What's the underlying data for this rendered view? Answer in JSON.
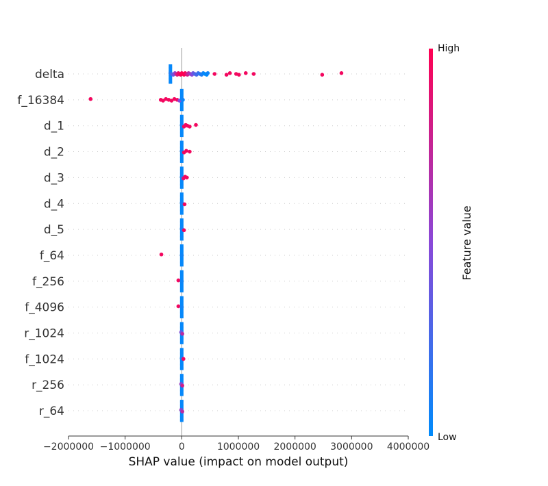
{
  "chart_data": {
    "type": "scatter",
    "title": "",
    "xlabel": "SHAP value (impact on model output)",
    "xlim": [
      -2000000,
      4000000
    ],
    "xticks": [
      -2000000,
      -1000000,
      0,
      1000000,
      2000000,
      3000000,
      4000000
    ],
    "xtick_labels": [
      "−2000000",
      "−1000000",
      "0",
      "1000000",
      "2000000",
      "3000000",
      "4000000"
    ],
    "colorbar": {
      "title": "Feature value",
      "high_label": "High",
      "low_label": "Low",
      "low_color": "#008bfb",
      "high_color": "#ff0052"
    },
    "features": [
      {
        "name": "delta",
        "points": [
          [
            -200000,
            0.1
          ],
          [
            -180000,
            0.25
          ],
          [
            -150000,
            0.4
          ],
          [
            -120000,
            0.55
          ],
          [
            -100000,
            0.7
          ],
          [
            -80000,
            0.85
          ],
          [
            -60000,
            0.9
          ],
          [
            -40000,
            0.95
          ],
          [
            -20000,
            1.0
          ],
          [
            0,
            1.0
          ],
          [
            20000,
            1.0
          ],
          [
            40000,
            1.0
          ],
          [
            60000,
            1.0
          ],
          [
            80000,
            0.9
          ],
          [
            100000,
            0.8
          ],
          [
            120000,
            0.7
          ],
          [
            150000,
            0.6
          ],
          [
            180000,
            0.5
          ],
          [
            200000,
            0.4
          ],
          [
            230000,
            0.3
          ],
          [
            260000,
            0.25
          ],
          [
            290000,
            0.2
          ],
          [
            320000,
            0.15
          ],
          [
            350000,
            0.1
          ],
          [
            380000,
            0.05
          ],
          [
            410000,
            0.0
          ],
          [
            440000,
            0.0
          ],
          [
            460000,
            0.05
          ],
          [
            580000,
            0.95
          ],
          [
            790000,
            0.95
          ],
          [
            850000,
            0.95
          ],
          [
            960000,
            0.95
          ],
          [
            1010000,
            0.95
          ],
          [
            1130000,
            0.95
          ],
          [
            1270000,
            0.95
          ],
          [
            2480000,
            0.95
          ],
          [
            2820000,
            0.95
          ]
        ]
      },
      {
        "name": "f_16384",
        "points": [
          [
            -1610000,
            0.95
          ],
          [
            -370000,
            0.95
          ],
          [
            -330000,
            0.95
          ],
          [
            -280000,
            0.95
          ],
          [
            -230000,
            0.95
          ],
          [
            -180000,
            0.95
          ],
          [
            -130000,
            0.95
          ],
          [
            -80000,
            0.95
          ],
          [
            -40000,
            0.5
          ],
          [
            0,
            0.05
          ],
          [
            20000,
            0.05
          ]
        ]
      },
      {
        "name": "d_1",
        "points": [
          [
            0,
            0.05
          ],
          [
            10000,
            0.1
          ],
          [
            40000,
            0.95
          ],
          [
            70000,
            0.95
          ],
          [
            100000,
            0.95
          ],
          [
            140000,
            0.95
          ],
          [
            250000,
            0.95
          ]
        ]
      },
      {
        "name": "d_2",
        "points": [
          [
            0,
            0.05
          ],
          [
            10000,
            0.1
          ],
          [
            40000,
            0.95
          ],
          [
            80000,
            0.95
          ],
          [
            140000,
            0.95
          ]
        ]
      },
      {
        "name": "d_3",
        "points": [
          [
            0,
            0.05
          ],
          [
            10000,
            0.1
          ],
          [
            30000,
            0.9
          ],
          [
            60000,
            0.95
          ],
          [
            90000,
            0.95
          ]
        ]
      },
      {
        "name": "d_4",
        "points": [
          [
            0,
            0.05
          ],
          [
            10000,
            0.1
          ],
          [
            50000,
            0.95
          ]
        ]
      },
      {
        "name": "d_5",
        "points": [
          [
            0,
            0.05
          ],
          [
            10000,
            0.1
          ],
          [
            40000,
            0.95
          ]
        ]
      },
      {
        "name": "f_64",
        "points": [
          [
            -360000,
            0.95
          ],
          [
            0,
            0.05
          ]
        ]
      },
      {
        "name": "f_256",
        "points": [
          [
            -60000,
            0.95
          ],
          [
            0,
            0.05
          ]
        ]
      },
      {
        "name": "f_4096",
        "points": [
          [
            -60000,
            0.95
          ],
          [
            0,
            0.05
          ]
        ]
      },
      {
        "name": "r_1024",
        "points": [
          [
            -10000,
            0.5
          ],
          [
            0,
            0.3
          ],
          [
            10000,
            0.7
          ]
        ]
      },
      {
        "name": "f_1024",
        "points": [
          [
            0,
            0.05
          ],
          [
            30000,
            0.95
          ]
        ]
      },
      {
        "name": "r_256",
        "points": [
          [
            -10000,
            0.6
          ],
          [
            0,
            0.4
          ],
          [
            10000,
            0.8
          ]
        ]
      },
      {
        "name": "r_64",
        "points": [
          [
            -10000,
            0.6
          ],
          [
            0,
            0.4
          ],
          [
            10000,
            0.7
          ]
        ]
      }
    ]
  }
}
